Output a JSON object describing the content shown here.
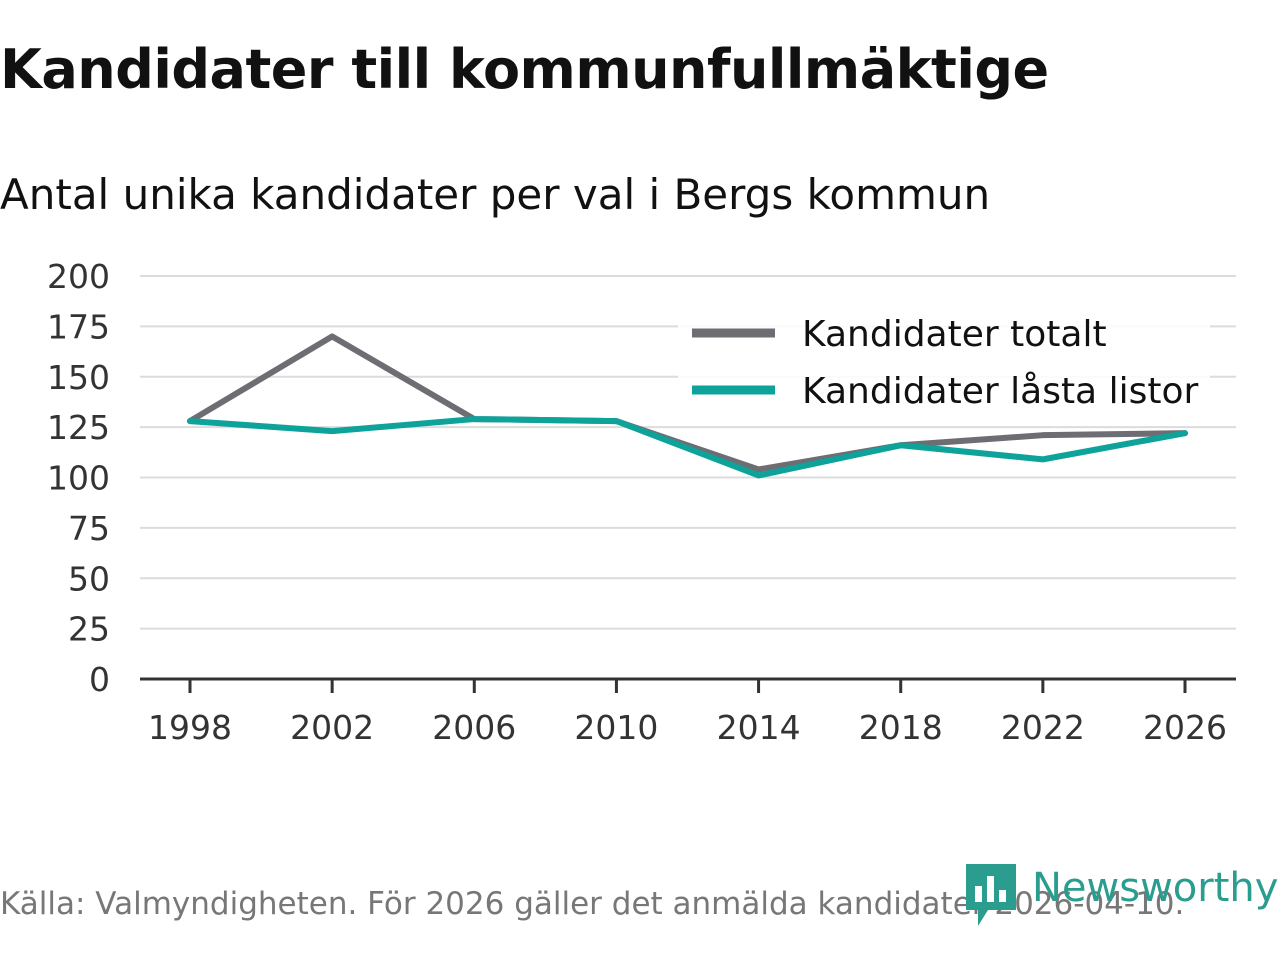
{
  "header": {
    "title": "Kandidater till kommunfullmäktige",
    "subtitle": "Antal unika kandidater per val i Bergs kommun"
  },
  "footer": {
    "source": "Källa: Valmyndigheten. För 2026 gäller det anmälda kandidater 2026-04-10."
  },
  "logo": {
    "text": "Newsworthy",
    "color": "#2a9d8f"
  },
  "chart_data": {
    "type": "line",
    "title": "Kandidater till kommunfullmäktige",
    "subtitle": "Antal unika kandidater per val i Bergs kommun",
    "xlabel": "",
    "ylabel": "",
    "categories": [
      "1998",
      "2002",
      "2006",
      "2010",
      "2014",
      "2018",
      "2022",
      "2026"
    ],
    "ylim": [
      0,
      200
    ],
    "yticks": [
      0,
      25,
      50,
      75,
      100,
      125,
      150,
      175,
      200
    ],
    "grid": true,
    "legend_position": "top-right",
    "series": [
      {
        "name": "Kandidater totalt",
        "color": "#6e6d73",
        "values": [
          128,
          170,
          129,
          128,
          104,
          116,
          121,
          122
        ]
      },
      {
        "name": "Kandidater låsta listor",
        "color": "#0ea39a",
        "values": [
          128,
          123,
          129,
          128,
          101,
          116,
          109,
          122
        ]
      }
    ]
  }
}
